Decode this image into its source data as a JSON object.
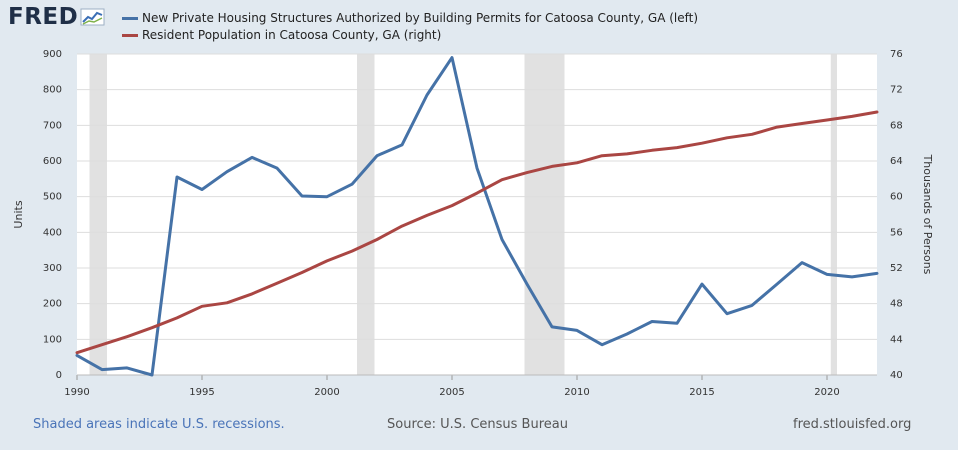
{
  "brand": {
    "name": "FRED"
  },
  "legend": {
    "left_series": "New Private Housing Structures Authorized by Building Permits for Catoosa County, GA (left)",
    "right_series": "Resident Population in Catoosa County, GA (right)"
  },
  "footer": {
    "recession_note": "Shaded areas indicate U.S. recessions.",
    "source": "Source: U.S. Census Bureau",
    "site": "fred.stlouisfed.org"
  },
  "colors": {
    "permits": "#4572a7",
    "population": "#aa4643",
    "recession": "#e1e1e1",
    "background": "#e1e9f0",
    "plot": "#ffffff",
    "grid": "#dddddd"
  },
  "chart_data": {
    "type": "line",
    "x": [
      1990,
      1991,
      1992,
      1993,
      1994,
      1995,
      1996,
      1997,
      1998,
      1999,
      2000,
      2001,
      2002,
      2003,
      2004,
      2005,
      2006,
      2007,
      2008,
      2009,
      2010,
      2011,
      2012,
      2013,
      2014,
      2015,
      2016,
      2017,
      2018,
      2019,
      2020,
      2021,
      2022
    ],
    "xlim": [
      1990,
      2022
    ],
    "x_ticks": [
      1990,
      1995,
      2000,
      2005,
      2010,
      2015,
      2020
    ],
    "series": [
      {
        "name": "New Private Housing Structures Authorized by Building Permits for Catoosa County, GA (left)",
        "axis": "left",
        "values": [
          55,
          15,
          20,
          0,
          555,
          520,
          570,
          610,
          580,
          502,
          500,
          535,
          615,
          645,
          785,
          890,
          580,
          380,
          255,
          135,
          125,
          85,
          115,
          150,
          145,
          255,
          172,
          195,
          255,
          315,
          282,
          275,
          285
        ]
      },
      {
        "name": "Resident Population in Catoosa County, GA (right)",
        "axis": "right",
        "values": [
          42.5,
          43.4,
          44.3,
          45.3,
          46.4,
          47.7,
          48.1,
          49.1,
          50.3,
          51.5,
          52.8,
          53.9,
          55.2,
          56.7,
          57.9,
          59.0,
          60.4,
          61.9,
          62.7,
          63.4,
          63.8,
          64.6,
          64.8,
          65.2,
          65.5,
          66.0,
          66.6,
          67.0,
          67.8,
          68.2,
          68.6,
          69.0,
          69.5
        ]
      }
    ],
    "ylim_left": [
      0,
      900
    ],
    "yticks_left": [
      0,
      100,
      200,
      300,
      400,
      500,
      600,
      700,
      800,
      900
    ],
    "ylabel_left": "Units",
    "ylim_right": [
      40,
      76
    ],
    "yticks_right": [
      40,
      44,
      48,
      52,
      56,
      60,
      64,
      68,
      72,
      76
    ],
    "ylabel_right": "Thousands of Persons",
    "recessions": [
      [
        1990.5,
        1991.2
      ],
      [
        2001.2,
        2001.9
      ],
      [
        2007.9,
        2009.5
      ],
      [
        2020.15,
        2020.4
      ]
    ],
    "grid": true
  }
}
